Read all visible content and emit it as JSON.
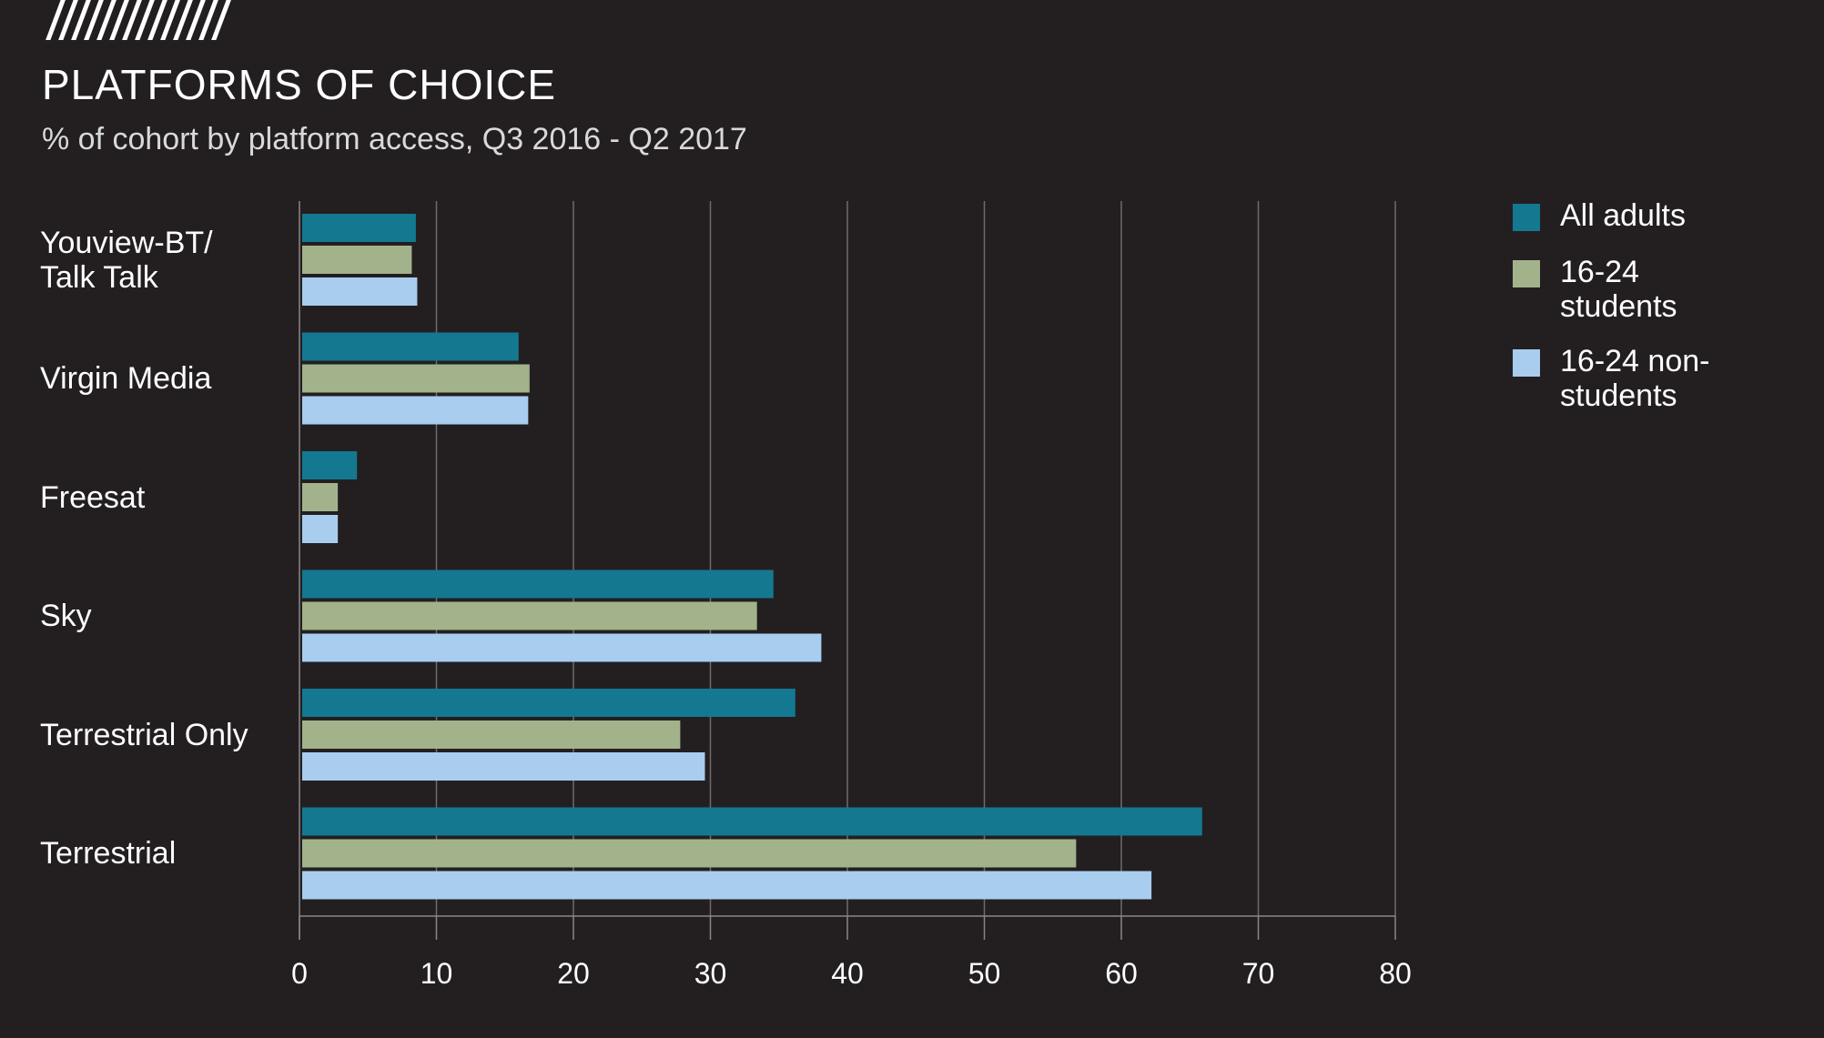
{
  "chart_data": {
    "type": "bar",
    "orientation": "horizontal",
    "title": "PLATFORMS OF CHOICE",
    "subtitle": "% of cohort by platform access, Q3 2016 - Q2 2017",
    "categories": [
      "Youview-BT/ Talk Talk",
      "Virgin Media",
      "Freesat",
      "Sky",
      "Terrestrial Only",
      "Terrestrial"
    ],
    "series": [
      {
        "name": "All adults",
        "color": "#147891",
        "values": [
          8.5,
          16,
          4.2,
          34.6,
          36.2,
          65.9
        ]
      },
      {
        "name": "16-24 students",
        "color": "#a2b38b",
        "values": [
          8.2,
          16.8,
          2.8,
          33.4,
          27.8,
          56.7
        ]
      },
      {
        "name": "16-24 non-students",
        "color": "#a8cdef",
        "values": [
          8.6,
          16.7,
          2.8,
          38.1,
          29.6,
          62.2
        ]
      }
    ],
    "xlim": [
      0,
      80
    ],
    "xticks": [
      0,
      10,
      20,
      30,
      40,
      50,
      60,
      70,
      80
    ],
    "grid": true,
    "legend_position": "right"
  }
}
